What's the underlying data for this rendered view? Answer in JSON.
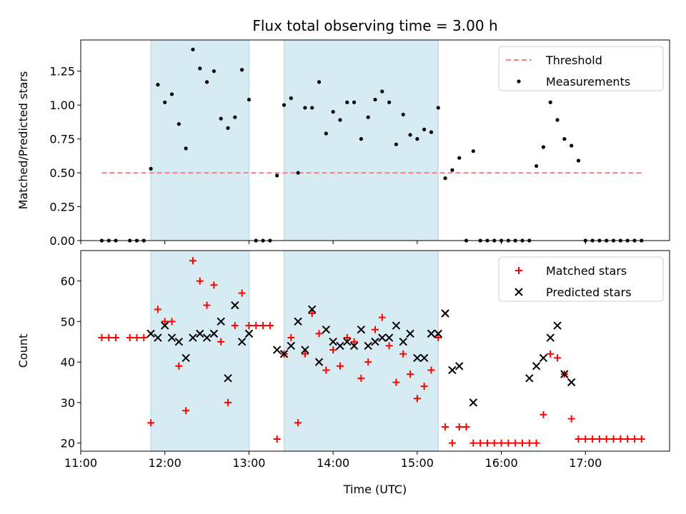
{
  "chart_data": [
    {
      "type": "scatter",
      "title": "Flux total observing time = 3.00 h",
      "xlabel": "",
      "ylabel": "Matched/Predicted stars",
      "ylim": [
        0,
        1.48
      ],
      "yticks": [
        0.0,
        0.25,
        0.5,
        0.75,
        1.0,
        1.25
      ],
      "ytick_labels": [
        "0.00",
        "0.25",
        "0.50",
        "0.75",
        "1.00",
        "1.25"
      ],
      "legend": "top-right",
      "shaded_intervals": [
        [
          "11:50",
          "13:00"
        ],
        [
          "13:25",
          "15:15"
        ]
      ],
      "shade_color": "#add8e6",
      "series": [
        {
          "name": "Threshold",
          "kind": "line",
          "style": "dashed",
          "color": "#ff8080",
          "x": [
            "11:15",
            "17:40"
          ],
          "y": [
            0.5,
            0.5
          ]
        },
        {
          "name": "Measurements",
          "kind": "point",
          "color": "#000000",
          "x": [
            "11:15",
            "11:20",
            "11:25",
            "11:35",
            "11:40",
            "11:45",
            "11:50",
            "11:55",
            "12:00",
            "12:05",
            "12:10",
            "12:15",
            "12:20",
            "12:25",
            "12:30",
            "12:35",
            "12:40",
            "12:45",
            "12:50",
            "12:55",
            "13:00",
            "13:05",
            "13:10",
            "13:15",
            "13:20",
            "13:25",
            "13:30",
            "13:35",
            "13:40",
            "13:45",
            "13:50",
            "13:55",
            "14:00",
            "14:05",
            "14:10",
            "14:15",
            "14:20",
            "14:25",
            "14:30",
            "14:35",
            "14:40",
            "14:45",
            "14:50",
            "14:55",
            "15:00",
            "15:05",
            "15:10",
            "15:15",
            "15:20",
            "15:25",
            "15:30",
            "15:35",
            "15:40",
            "15:45",
            "15:50",
            "15:55",
            "16:00",
            "16:05",
            "16:10",
            "16:15",
            "16:20",
            "16:25",
            "16:30",
            "16:35",
            "16:40",
            "16:45",
            "16:50",
            "16:55",
            "17:00",
            "17:05",
            "17:10",
            "17:15",
            "17:20",
            "17:25",
            "17:30",
            "17:35",
            "17:40"
          ],
          "y": [
            0,
            0,
            0,
            0,
            0,
            0,
            0.53,
            1.15,
            1.02,
            1.08,
            0.86,
            0.68,
            1.41,
            1.27,
            1.17,
            1.25,
            0.9,
            0.83,
            0.91,
            1.26,
            1.04,
            0,
            0,
            0,
            0.48,
            1.0,
            1.05,
            0.5,
            0.98,
            0.98,
            1.17,
            0.79,
            0.95,
            0.89,
            1.02,
            1.02,
            0.75,
            0.91,
            1.04,
            1.1,
            1.02,
            0.71,
            0.93,
            0.78,
            0.75,
            0.82,
            0.8,
            0.98,
            0.46,
            0.52,
            0.61,
            0,
            0.66,
            0,
            0,
            0,
            0,
            0,
            0,
            0,
            0,
            0.55,
            0.69,
            1.02,
            0.89,
            0.75,
            0.7,
            0.59,
            0,
            0,
            0,
            0,
            0,
            0,
            0,
            0,
            0
          ]
        }
      ]
    },
    {
      "type": "scatter",
      "title": "",
      "xlabel": "Time (UTC)",
      "ylabel": "Count",
      "xlim": [
        "11:00",
        "18:00"
      ],
      "xticks": [
        "11:00",
        "12:00",
        "13:00",
        "14:00",
        "15:00",
        "16:00",
        "17:00"
      ],
      "ylim": [
        18,
        67.5
      ],
      "yticks": [
        20,
        30,
        40,
        50,
        60
      ],
      "ytick_labels": [
        "20",
        "30",
        "40",
        "50",
        "60"
      ],
      "legend": "top-right",
      "shaded_intervals": [
        [
          "11:50",
          "13:00"
        ],
        [
          "13:25",
          "15:15"
        ]
      ],
      "shade_color": "#add8e6",
      "series": [
        {
          "name": "Matched stars",
          "marker": "plus",
          "color": "#ff0000",
          "x": [
            "11:15",
            "11:20",
            "11:25",
            "11:35",
            "11:40",
            "11:45",
            "11:50",
            "11:55",
            "12:00",
            "12:05",
            "12:10",
            "12:15",
            "12:20",
            "12:25",
            "12:30",
            "12:35",
            "12:40",
            "12:45",
            "12:50",
            "12:55",
            "13:00",
            "13:05",
            "13:10",
            "13:15",
            "13:20",
            "13:25",
            "13:30",
            "13:35",
            "13:40",
            "13:45",
            "13:50",
            "13:55",
            "14:00",
            "14:05",
            "14:10",
            "14:15",
            "14:20",
            "14:25",
            "14:30",
            "14:35",
            "14:40",
            "14:45",
            "14:50",
            "14:55",
            "15:00",
            "15:05",
            "15:10",
            "15:15",
            "15:20",
            "15:25",
            "15:30",
            "15:35",
            "15:40",
            "15:45",
            "15:50",
            "15:55",
            "16:00",
            "16:05",
            "16:10",
            "16:15",
            "16:20",
            "16:25",
            "16:30",
            "16:35",
            "16:40",
            "16:45",
            "16:50",
            "16:55",
            "17:00",
            "17:05",
            "17:10",
            "17:15",
            "17:20",
            "17:25",
            "17:30",
            "17:35",
            "17:40"
          ],
          "y": [
            46,
            46,
            46,
            46,
            46,
            46,
            25,
            53,
            50,
            50,
            39,
            28,
            65,
            60,
            54,
            59,
            45,
            30,
            49,
            57,
            49,
            49,
            49,
            49,
            21,
            42,
            46,
            25,
            42,
            52,
            47,
            38,
            43,
            39,
            46,
            45,
            36,
            40,
            48,
            51,
            44,
            35,
            42,
            37,
            31,
            34,
            38,
            46,
            24,
            20,
            24,
            24,
            20,
            20,
            20,
            20,
            20,
            20,
            20,
            20,
            20,
            20,
            27,
            42,
            41,
            37,
            26,
            21,
            21,
            21,
            21,
            21,
            21,
            21,
            21,
            21,
            21
          ]
        },
        {
          "name": "Predicted stars",
          "marker": "x",
          "color": "#000000",
          "x": [
            "11:50",
            "11:55",
            "12:00",
            "12:05",
            "12:10",
            "12:15",
            "12:20",
            "12:25",
            "12:30",
            "12:35",
            "12:40",
            "12:45",
            "12:50",
            "12:55",
            "13:00",
            "13:20",
            "13:25",
            "13:30",
            "13:35",
            "13:40",
            "13:45",
            "13:50",
            "13:55",
            "14:00",
            "14:05",
            "14:10",
            "14:15",
            "14:20",
            "14:25",
            "14:30",
            "14:35",
            "14:40",
            "14:45",
            "14:50",
            "14:55",
            "15:00",
            "15:05",
            "15:10",
            "15:15",
            "15:20",
            "15:25",
            "15:30",
            "15:40",
            "16:20",
            "16:25",
            "16:30",
            "16:35",
            "16:40",
            "16:45",
            "16:50"
          ],
          "y": [
            47,
            46,
            49,
            46,
            45,
            41,
            46,
            47,
            46,
            47,
            50,
            36,
            54,
            45,
            47,
            43,
            42,
            44,
            50,
            43,
            53,
            40,
            48,
            45,
            44,
            45,
            44,
            48,
            44,
            45,
            46,
            46,
            49,
            45,
            47,
            41,
            41,
            47,
            47,
            52,
            38,
            39,
            30,
            36,
            39,
            41,
            46,
            49,
            37,
            35
          ]
        }
      ]
    }
  ]
}
